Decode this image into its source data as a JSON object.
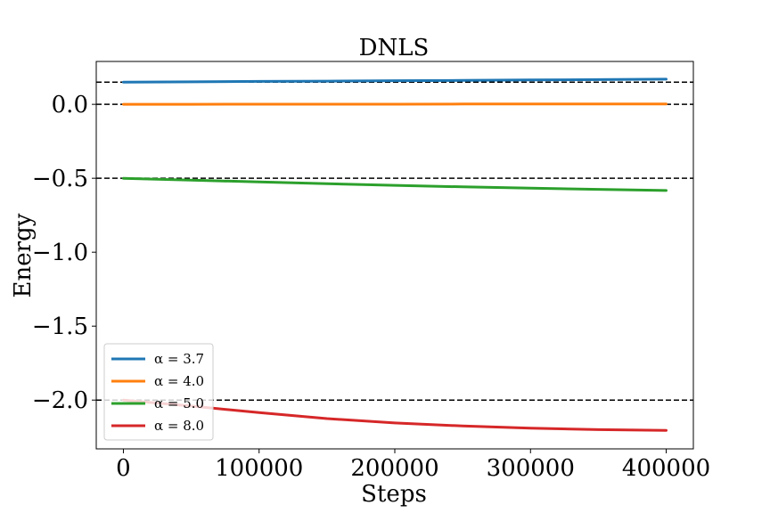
{
  "chart_data": {
    "type": "line",
    "title": "DNLS",
    "xlabel": "Steps",
    "ylabel": "Energy",
    "xlim": [
      -20000,
      420000
    ],
    "ylim": [
      -2.33,
      0.29
    ],
    "xticks": [
      0,
      100000,
      200000,
      300000,
      400000
    ],
    "xtick_labels": [
      "0",
      "100000",
      "200000",
      "300000",
      "400000"
    ],
    "yticks": [
      0.0,
      -0.5,
      -1.0,
      -1.5,
      -2.0
    ],
    "ytick_labels": [
      "0.0",
      "−0.5",
      "−1.0",
      "−1.5",
      "−2.0"
    ],
    "grid": false,
    "legend_position": "lower-left",
    "reference_lines": [
      0.15,
      0.0,
      -0.5,
      -2.0
    ],
    "series": [
      {
        "name": "α = 3.7",
        "color": "#1f77b4",
        "x": [
          0,
          50000,
          100000,
          150000,
          200000,
          250000,
          300000,
          350000,
          400000
        ],
        "y": [
          0.15,
          0.152,
          0.155,
          0.157,
          0.16,
          0.162,
          0.165,
          0.167,
          0.17
        ]
      },
      {
        "name": "α = 4.0",
        "color": "#ff7f0e",
        "x": [
          0,
          50000,
          100000,
          150000,
          200000,
          250000,
          300000,
          350000,
          400000
        ],
        "y": [
          0.0,
          0.0,
          0.001,
          0.001,
          0.001,
          0.002,
          0.002,
          0.002,
          0.002
        ]
      },
      {
        "name": "α = 5.0",
        "color": "#2ca02c",
        "x": [
          0,
          50000,
          100000,
          150000,
          200000,
          250000,
          300000,
          350000,
          400000
        ],
        "y": [
          -0.5,
          -0.512,
          -0.525,
          -0.537,
          -0.548,
          -0.558,
          -0.567,
          -0.575,
          -0.583
        ]
      },
      {
        "name": "α = 8.0",
        "color": "#d62728",
        "x": [
          0,
          50000,
          100000,
          150000,
          200000,
          250000,
          300000,
          350000,
          400000
        ],
        "y": [
          -2.0,
          -2.04,
          -2.085,
          -2.125,
          -2.155,
          -2.175,
          -2.19,
          -2.2,
          -2.205
        ]
      }
    ]
  }
}
